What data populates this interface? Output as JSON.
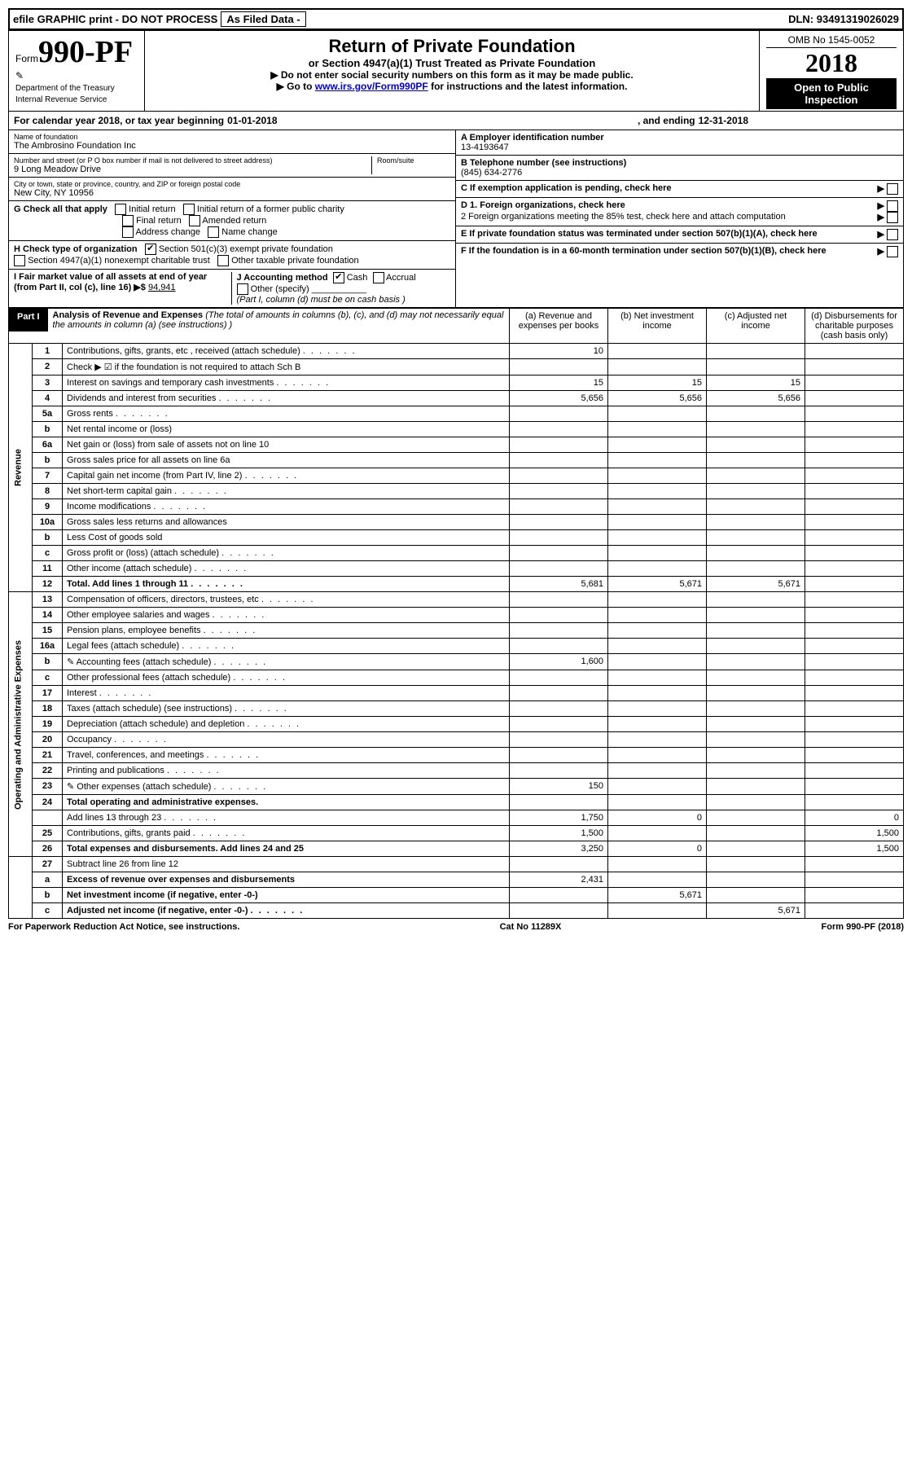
{
  "top": {
    "efile": "efile GRAPHIC print - DO NOT PROCESS",
    "asfiled": "As Filed Data -",
    "dln_label": "DLN:",
    "dln": "93491319026029"
  },
  "header": {
    "form_prefix": "Form",
    "form_num": "990-PF",
    "dept1": "Department of the Treasury",
    "dept2": "Internal Revenue Service",
    "title": "Return of Private Foundation",
    "subtitle": "or Section 4947(a)(1) Trust Treated as Private Foundation",
    "instr1": "▶ Do not enter social security numbers on this form as it may be made public.",
    "instr2_pre": "▶ Go to ",
    "instr2_link": "www.irs.gov/Form990PF",
    "instr2_post": " for instructions and the latest information.",
    "omb": "OMB No 1545-0052",
    "year": "2018",
    "open": "Open to Public Inspection"
  },
  "calyear": {
    "pre": "For calendar year 2018, or tax year beginning ",
    "begin": "01-01-2018",
    "mid": ", and ending ",
    "end": "12-31-2018"
  },
  "id": {
    "name_label": "Name of foundation",
    "name": "The Ambrosino Foundation Inc",
    "addr_label": "Number and street (or P O  box number if mail is not delivered to street address)",
    "room_label": "Room/suite",
    "addr": "9 Long Meadow Drive",
    "city_label": "City or town, state or province, country, and ZIP or foreign postal code",
    "city": "New City, NY  10956",
    "a_label": "A Employer identification number",
    "a_val": "13-4193647",
    "b_label": "B Telephone number (see instructions)",
    "b_val": "(845) 634-2776",
    "c_label": "C If exemption application is pending, check here",
    "d1": "D 1. Foreign organizations, check here",
    "d2": "2 Foreign organizations meeting the 85% test, check here and attach computation",
    "e": "E  If private foundation status was terminated under section 507(b)(1)(A), check here",
    "f": "F  If the foundation is in a 60-month termination under section 507(b)(1)(B), check here"
  },
  "g": {
    "label": "G Check all that apply",
    "o1": "Initial return",
    "o2": "Initial return of a former public charity",
    "o3": "Final return",
    "o4": "Amended return",
    "o5": "Address change",
    "o6": "Name change"
  },
  "h": {
    "label": "H Check type of organization",
    "o1": "Section 501(c)(3) exempt private foundation",
    "o2": "Section 4947(a)(1) nonexempt charitable trust",
    "o3": "Other taxable private foundation",
    "checked": "✔"
  },
  "i": {
    "label": "I Fair market value of all assets at end of year (from Part II, col (c), line 16) ▶$ ",
    "val": "94,941"
  },
  "j": {
    "label": "J Accounting method",
    "o1": "Cash",
    "o2": "Accrual",
    "o3": "Other (specify)",
    "note": "(Part I, column (d) must be on cash basis )",
    "checked": "✔"
  },
  "part1": {
    "label": "Part I",
    "title": "Analysis of Revenue and Expenses",
    "note": " (The total of amounts in columns (b), (c), and (d) may not necessarily equal the amounts in column (a) (see instructions) )",
    "col_a": "(a) Revenue and expenses per books",
    "col_b": "(b) Net investment income",
    "col_c": "(c) Adjusted net income",
    "col_d": "(d) Disbursements for charitable purposes (cash basis only)"
  },
  "vlabels": {
    "revenue": "Revenue",
    "expenses": "Operating and Administrative Expenses"
  },
  "rows": [
    {
      "n": "1",
      "d": "Contributions, gifts, grants, etc , received (attach schedule)",
      "a": "10",
      "b": "",
      "c": "",
      "dd": ""
    },
    {
      "n": "2",
      "d": "Check ▶ ☑ if the foundation is not required to attach Sch B",
      "nodots": true
    },
    {
      "n": "3",
      "d": "Interest on savings and temporary cash investments",
      "a": "15",
      "b": "15",
      "c": "15",
      "dd": ""
    },
    {
      "n": "4",
      "d": "Dividends and interest from securities",
      "a": "5,656",
      "b": "5,656",
      "c": "5,656",
      "dd": ""
    },
    {
      "n": "5a",
      "d": "Gross rents"
    },
    {
      "n": "b",
      "d": "Net rental income or (loss)",
      "nodots": true
    },
    {
      "n": "6a",
      "d": "Net gain or (loss) from sale of assets not on line 10",
      "nodots": true
    },
    {
      "n": "b",
      "d": "Gross sales price for all assets on line 6a",
      "nodots": true
    },
    {
      "n": "7",
      "d": "Capital gain net income (from Part IV, line 2)"
    },
    {
      "n": "8",
      "d": "Net short-term capital gain"
    },
    {
      "n": "9",
      "d": "Income modifications"
    },
    {
      "n": "10a",
      "d": "Gross sales less returns and allowances",
      "nodots": true
    },
    {
      "n": "b",
      "d": "Less  Cost of goods sold",
      "nodots": true
    },
    {
      "n": "c",
      "d": "Gross profit or (loss) (attach schedule)"
    },
    {
      "n": "11",
      "d": "Other income (attach schedule)"
    },
    {
      "n": "12",
      "d": "Total. Add lines 1 through 11",
      "bold": true,
      "a": "5,681",
      "b": "5,671",
      "c": "5,671",
      "dd": ""
    }
  ],
  "exp_rows": [
    {
      "n": "13",
      "d": "Compensation of officers, directors, trustees, etc"
    },
    {
      "n": "14",
      "d": "Other employee salaries and wages"
    },
    {
      "n": "15",
      "d": "Pension plans, employee benefits"
    },
    {
      "n": "16a",
      "d": "Legal fees (attach schedule)"
    },
    {
      "n": "b",
      "d": "Accounting fees (attach schedule)",
      "icon": true,
      "a": "1,600"
    },
    {
      "n": "c",
      "d": "Other professional fees (attach schedule)"
    },
    {
      "n": "17",
      "d": "Interest"
    },
    {
      "n": "18",
      "d": "Taxes (attach schedule) (see instructions)"
    },
    {
      "n": "19",
      "d": "Depreciation (attach schedule) and depletion"
    },
    {
      "n": "20",
      "d": "Occupancy"
    },
    {
      "n": "21",
      "d": "Travel, conferences, and meetings"
    },
    {
      "n": "22",
      "d": "Printing and publications"
    },
    {
      "n": "23",
      "d": "Other expenses (attach schedule)",
      "icon": true,
      "a": "150"
    },
    {
      "n": "24",
      "d": "Total operating and administrative expenses.",
      "bold": true,
      "nodots": true
    },
    {
      "n": "",
      "d": "Add lines 13 through 23",
      "a": "1,750",
      "b": "0",
      "dd": "0"
    },
    {
      "n": "25",
      "d": "Contributions, gifts, grants paid",
      "a": "1,500",
      "dd": "1,500"
    },
    {
      "n": "26",
      "d": "Total expenses and disbursements. Add lines 24 and 25",
      "bold": true,
      "nodots": true,
      "a": "3,250",
      "b": "0",
      "dd": "1,500"
    }
  ],
  "sum_rows": [
    {
      "n": "27",
      "d": "Subtract line 26 from line 12",
      "nodots": true
    },
    {
      "n": "a",
      "d": "Excess of revenue over expenses and disbursements",
      "bold": true,
      "nodots": true,
      "a": "2,431"
    },
    {
      "n": "b",
      "d": "Net investment income (if negative, enter -0-)",
      "bold": true,
      "nodots": true,
      "b": "5,671"
    },
    {
      "n": "c",
      "d": "Adjusted net income (if negative, enter -0-)",
      "bold": true,
      "c": "5,671"
    }
  ],
  "footer": {
    "left": "For Paperwork Reduction Act Notice, see instructions.",
    "mid": "Cat No 11289X",
    "right": "Form 990-PF (2018)"
  }
}
